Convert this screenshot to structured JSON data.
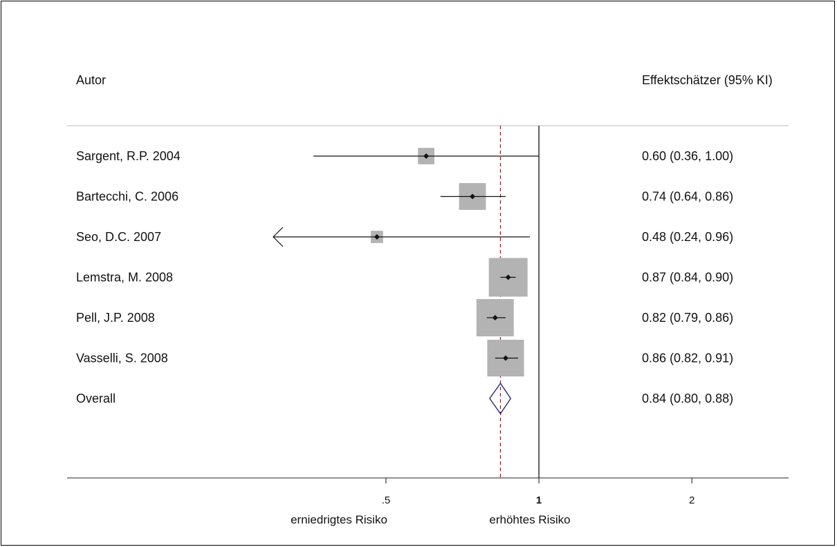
{
  "chart_data": {
    "type": "forest",
    "column_headers": {
      "author": "Autor",
      "estimate": "Effektschätzer (95% KI)"
    },
    "studies": [
      {
        "label": "Sargent, R.P. 2004",
        "estimate": 0.6,
        "ci_low": 0.36,
        "ci_high": 1.0,
        "ci_text": "0.60 (0.36, 1.00)",
        "weight": 0.18
      },
      {
        "label": "Bartecchi, C. 2006",
        "estimate": 0.74,
        "ci_low": 0.64,
        "ci_high": 0.86,
        "ci_text": "0.74 (0.64, 0.86)",
        "weight": 0.48
      },
      {
        "label": "Seo, D.C. 2007",
        "estimate": 0.48,
        "ci_low": 0.24,
        "ci_high": 0.96,
        "ci_text": "0.48 (0.24, 0.96)",
        "weight": 0.1
      },
      {
        "label": "Lemstra, M. 2008",
        "estimate": 0.87,
        "ci_low": 0.84,
        "ci_high": 0.9,
        "ci_text": "0.87 (0.84, 0.90)",
        "weight": 1.0
      },
      {
        "label": "Pell, J.P. 2008",
        "estimate": 0.82,
        "ci_low": 0.79,
        "ci_high": 0.86,
        "ci_text": "0.82 (0.79, 0.86)",
        "weight": 0.93
      },
      {
        "label": "Vasselli, S. 2008",
        "estimate": 0.86,
        "ci_low": 0.82,
        "ci_high": 0.91,
        "ci_text": "0.86 (0.82, 0.91)",
        "weight": 0.9
      }
    ],
    "overall": {
      "label": "Overall",
      "estimate": 0.84,
      "ci_low": 0.8,
      "ci_high": 0.88,
      "ci_text": "0.84 (0.80, 0.88)"
    },
    "x_scale": "log",
    "xlim": [
      0.3,
      3.1
    ],
    "x_ticks": [
      {
        "value": 0.5,
        "label": ".5"
      },
      {
        "value": 1,
        "label": "1"
      },
      {
        "value": 2,
        "label": "2"
      }
    ],
    "null_line": 1,
    "x_annotations": {
      "left": "erniedrigtes Risiko",
      "right": "erhöhtes Risiko"
    },
    "colors": {
      "weight_box": "#b3b3b3",
      "diamond": "#1a1a6e",
      "overall_line": "#8b1a2b",
      "text": "#111111"
    }
  }
}
